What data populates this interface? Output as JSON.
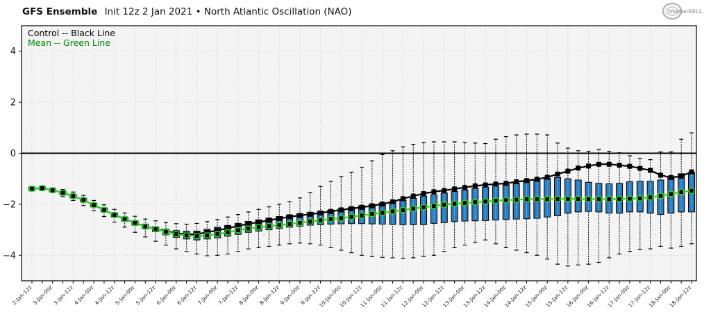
{
  "header": {
    "model": "GFS Ensemble",
    "subtitle": "Init 12z 2 Jan 2021 • North Atlantic Oscillation (NAO)"
  },
  "logo": {
    "text": "WeatherBELL"
  },
  "colors": {
    "control": "#000000",
    "mean": "#33cc33",
    "mean_text": "#008800",
    "box_fill": "#2b7bba",
    "plot_bg": "#f4f4f4",
    "grid": "#cccccc"
  },
  "chart_data": {
    "type": "box",
    "title": "GFS Ensemble Init 12z 2 Jan 2021 • North Atlantic Oscillation (NAO)",
    "xlabel": "",
    "ylabel": "",
    "ylim": [
      -5,
      5
    ],
    "yticks": [
      -4,
      -2,
      0,
      2,
      4
    ],
    "grid": true,
    "legend_position": "top-left",
    "legend": [
      {
        "label": "Control -- Black Line",
        "color": "#000000"
      },
      {
        "label": "Mean -- Green Line",
        "color": "#008800"
      }
    ],
    "reference_line": 0,
    "x_labels": [
      "2-Jan-12z",
      "3-Jan-00z",
      "3-Jan-12z",
      "4-Jan-00z",
      "4-Jan-12z",
      "5-Jan-00z",
      "5-Jan-12z",
      "6-Jan-00z",
      "6-Jan-12z",
      "7-Jan-00z",
      "7-Jan-12z",
      "8-Jan-00z",
      "8-Jan-12z",
      "9-Jan-00z",
      "9-Jan-12z",
      "10-Jan-00z",
      "10-Jan-12z",
      "11-Jan-00z",
      "11-Jan-12z",
      "12-Jan-00z",
      "12-Jan-12z",
      "13-Jan-00z",
      "13-Jan-12z",
      "14-Jan-00z",
      "14-Jan-12z",
      "15-Jan-00z",
      "15-Jan-12z",
      "16-Jan-00z",
      "16-Jan-12z",
      "17-Jan-00z",
      "17-Jan-12z",
      "18-Jan-00z",
      "18-Jan-12z"
    ],
    "x_step_hours": 6,
    "control": [
      -1.39,
      -1.37,
      -1.45,
      -1.55,
      -1.68,
      -1.83,
      -2.03,
      -2.22,
      -2.42,
      -2.58,
      -2.73,
      -2.87,
      -2.97,
      -3.06,
      -3.13,
      -3.18,
      -3.17,
      -3.1,
      -3.02,
      -2.94,
      -2.85,
      -2.77,
      -2.7,
      -2.63,
      -2.56,
      -2.49,
      -2.44,
      -2.39,
      -2.34,
      -2.28,
      -2.22,
      -2.17,
      -2.12,
      -2.06,
      -1.99,
      -1.9,
      -1.78,
      -1.68,
      -1.58,
      -1.51,
      -1.46,
      -1.4,
      -1.34,
      -1.28,
      -1.24,
      -1.21,
      -1.18,
      -1.12,
      -1.07,
      -1.02,
      -0.94,
      -0.82,
      -0.7,
      -0.58,
      -0.5,
      -0.43,
      -0.43,
      -0.47,
      -0.51,
      -0.59,
      -0.67,
      -0.86,
      -0.95,
      -0.9,
      -0.73
    ],
    "mean": [
      -1.39,
      -1.37,
      -1.45,
      -1.55,
      -1.68,
      -1.83,
      -2.03,
      -2.22,
      -2.42,
      -2.58,
      -2.73,
      -2.87,
      -2.98,
      -3.08,
      -3.17,
      -3.22,
      -3.25,
      -3.22,
      -3.17,
      -3.1,
      -3.02,
      -2.95,
      -2.9,
      -2.86,
      -2.82,
      -2.77,
      -2.73,
      -2.68,
      -2.63,
      -2.58,
      -2.55,
      -2.49,
      -2.44,
      -2.38,
      -2.33,
      -2.28,
      -2.23,
      -2.17,
      -2.12,
      -2.07,
      -2.02,
      -1.98,
      -1.95,
      -1.92,
      -1.89,
      -1.86,
      -1.84,
      -1.82,
      -1.8,
      -1.8,
      -1.8,
      -1.79,
      -1.79,
      -1.79,
      -1.8,
      -1.8,
      -1.8,
      -1.79,
      -1.78,
      -1.77,
      -1.73,
      -1.67,
      -1.6,
      -1.52,
      -1.47
    ],
    "q3": [
      -1.33,
      -1.32,
      -1.4,
      -1.49,
      -1.62,
      -1.77,
      -1.96,
      -2.15,
      -2.34,
      -2.5,
      -2.65,
      -2.78,
      -2.88,
      -2.97,
      -3.03,
      -3.06,
      -3.05,
      -2.98,
      -2.9,
      -2.83,
      -2.75,
      -2.67,
      -2.61,
      -2.54,
      -2.48,
      -2.42,
      -2.37,
      -2.32,
      -2.28,
      -2.23,
      -2.18,
      -2.12,
      -2.06,
      -2.0,
      -1.95,
      -1.91,
      -1.84,
      -1.77,
      -1.68,
      -1.63,
      -1.56,
      -1.5,
      -1.44,
      -1.38,
      -1.33,
      -1.28,
      -1.23,
      -1.18,
      -1.12,
      -1.05,
      -0.98,
      -0.95,
      -1.0,
      -1.05,
      -1.14,
      -1.18,
      -1.2,
      -1.18,
      -1.12,
      -1.1,
      -1.1,
      -1.05,
      -0.95,
      -0.8,
      -0.75
    ],
    "q1": [
      -1.45,
      -1.42,
      -1.5,
      -1.62,
      -1.75,
      -1.9,
      -2.1,
      -2.3,
      -2.5,
      -2.67,
      -2.82,
      -2.97,
      -3.08,
      -3.2,
      -3.3,
      -3.36,
      -3.4,
      -3.36,
      -3.32,
      -3.25,
      -3.18,
      -3.1,
      -3.05,
      -3.0,
      -2.95,
      -2.9,
      -2.86,
      -2.82,
      -2.8,
      -2.78,
      -2.77,
      -2.76,
      -2.76,
      -2.77,
      -2.78,
      -2.79,
      -2.8,
      -2.8,
      -2.8,
      -2.75,
      -2.72,
      -2.68,
      -2.66,
      -2.65,
      -2.64,
      -2.62,
      -2.6,
      -2.58,
      -2.57,
      -2.55,
      -2.5,
      -2.45,
      -2.35,
      -2.3,
      -2.28,
      -2.3,
      -2.35,
      -2.35,
      -2.3,
      -2.3,
      -2.35,
      -2.4,
      -2.35,
      -2.3,
      -2.3
    ],
    "max": [
      -1.3,
      -1.3,
      -1.35,
      -1.42,
      -1.52,
      -1.65,
      -1.85,
      -2.02,
      -2.2,
      -2.34,
      -2.47,
      -2.58,
      -2.65,
      -2.72,
      -2.76,
      -2.78,
      -2.75,
      -2.68,
      -2.6,
      -2.5,
      -2.4,
      -2.3,
      -2.2,
      -2.1,
      -2.0,
      -1.9,
      -1.75,
      -1.55,
      -1.3,
      -1.1,
      -0.92,
      -0.75,
      -0.55,
      -0.3,
      -0.05,
      0.1,
      0.25,
      0.35,
      0.42,
      0.45,
      0.45,
      0.45,
      0.42,
      0.4,
      0.38,
      0.55,
      0.65,
      0.72,
      0.75,
      0.75,
      0.72,
      0.4,
      0.2,
      0.1,
      0.08,
      0.15,
      0.08,
      0.02,
      -0.1,
      -0.2,
      -0.25,
      0.05,
      0.05,
      0.55,
      0.8
    ],
    "min": [
      -1.48,
      -1.45,
      -1.55,
      -1.7,
      -1.85,
      -2.05,
      -2.25,
      -2.48,
      -2.7,
      -2.9,
      -3.1,
      -3.28,
      -3.45,
      -3.6,
      -3.75,
      -3.85,
      -3.95,
      -4.02,
      -4.0,
      -3.95,
      -3.85,
      -3.75,
      -3.7,
      -3.65,
      -3.6,
      -3.55,
      -3.52,
      -3.55,
      -3.6,
      -3.7,
      -3.8,
      -3.9,
      -4.0,
      -4.05,
      -4.08,
      -4.1,
      -4.12,
      -4.1,
      -4.05,
      -4.0,
      -3.85,
      -3.7,
      -3.6,
      -3.5,
      -3.4,
      -3.55,
      -3.7,
      -3.8,
      -3.9,
      -4.0,
      -4.15,
      -4.35,
      -4.42,
      -4.38,
      -4.35,
      -4.28,
      -4.1,
      -3.95,
      -3.85,
      -3.78,
      -3.75,
      -3.65,
      -3.72,
      -3.65,
      -3.55
    ]
  }
}
